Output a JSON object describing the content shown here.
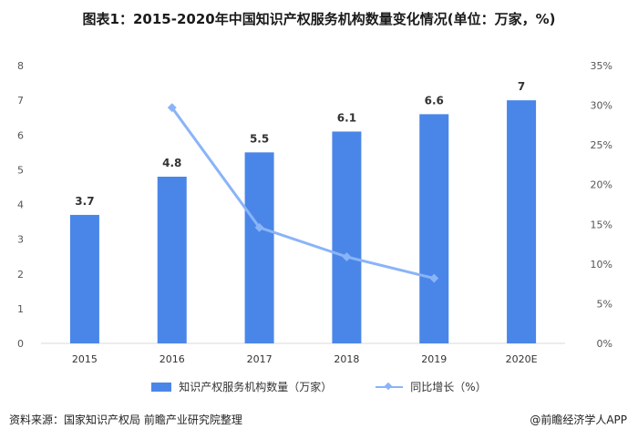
{
  "title": "图表1：2015-2020年中国知识产权服务机构数量变化情况(单位：万家，%)",
  "chart_data": {
    "type": "bar",
    "categories": [
      "2015",
      "2016",
      "2017",
      "2018",
      "2019",
      "2020E"
    ],
    "series": [
      {
        "name": "知识产权服务机构数量（万家）",
        "type": "bar",
        "axis": "left",
        "values": [
          3.7,
          4.8,
          5.5,
          6.1,
          6.6,
          7
        ],
        "labels": [
          "3.7",
          "4.8",
          "5.5",
          "6.1",
          "6.6",
          "7"
        ]
      },
      {
        "name": "同比增长（%）",
        "type": "line",
        "axis": "right",
        "values": [
          null,
          29.7,
          14.6,
          10.9,
          8.2,
          null
        ]
      }
    ],
    "y_left": {
      "min": 0,
      "max": 8,
      "ticks": [
        "0",
        "1",
        "2",
        "3",
        "4",
        "5",
        "6",
        "7",
        "8"
      ]
    },
    "y_right": {
      "min": 0,
      "max": 35,
      "ticks": [
        "0%",
        "5%",
        "10%",
        "15%",
        "20%",
        "25%",
        "30%",
        "35%"
      ]
    },
    "colors": {
      "bar": "#4a86e8",
      "line": "#8ab4f8",
      "axis": "#d9d9d9"
    },
    "legend_position": "bottom"
  },
  "footer": {
    "source": "资料来源：国家知识产权局 前瞻产业研究院整理",
    "brand": "@前瞻经济学人APP"
  }
}
